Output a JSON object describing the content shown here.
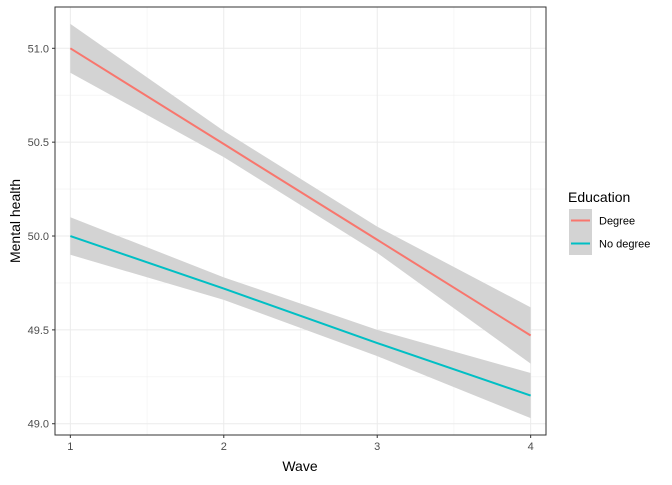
{
  "chart_data": {
    "type": "line",
    "title": "",
    "xlabel": "Wave",
    "ylabel": "Mental health",
    "x": [
      1,
      2,
      3,
      4
    ],
    "xticks": [
      "1",
      "2",
      "3",
      "4"
    ],
    "yticks": [
      "49.0",
      "49.5",
      "50.0",
      "50.5",
      "51.0"
    ],
    "xlim": [
      0.9,
      4.1
    ],
    "ylim": [
      48.94,
      51.22
    ],
    "grid": true,
    "legend": {
      "title": "Education",
      "position": "right"
    },
    "series": [
      {
        "name": "Degree",
        "color": "#F8766D",
        "y": [
          51.0,
          50.49,
          49.98,
          49.47
        ],
        "ci_lower": [
          50.87,
          50.42,
          49.91,
          49.32
        ],
        "ci_upper": [
          51.13,
          50.56,
          50.05,
          49.62
        ]
      },
      {
        "name": "No degree",
        "color": "#00BFC4",
        "y": [
          50.0,
          49.72,
          49.43,
          49.15
        ],
        "ci_lower": [
          49.9,
          49.66,
          49.36,
          49.03
        ],
        "ci_upper": [
          50.1,
          49.78,
          49.5,
          49.27
        ]
      }
    ],
    "ribbon_color": "#D3D3D3"
  }
}
